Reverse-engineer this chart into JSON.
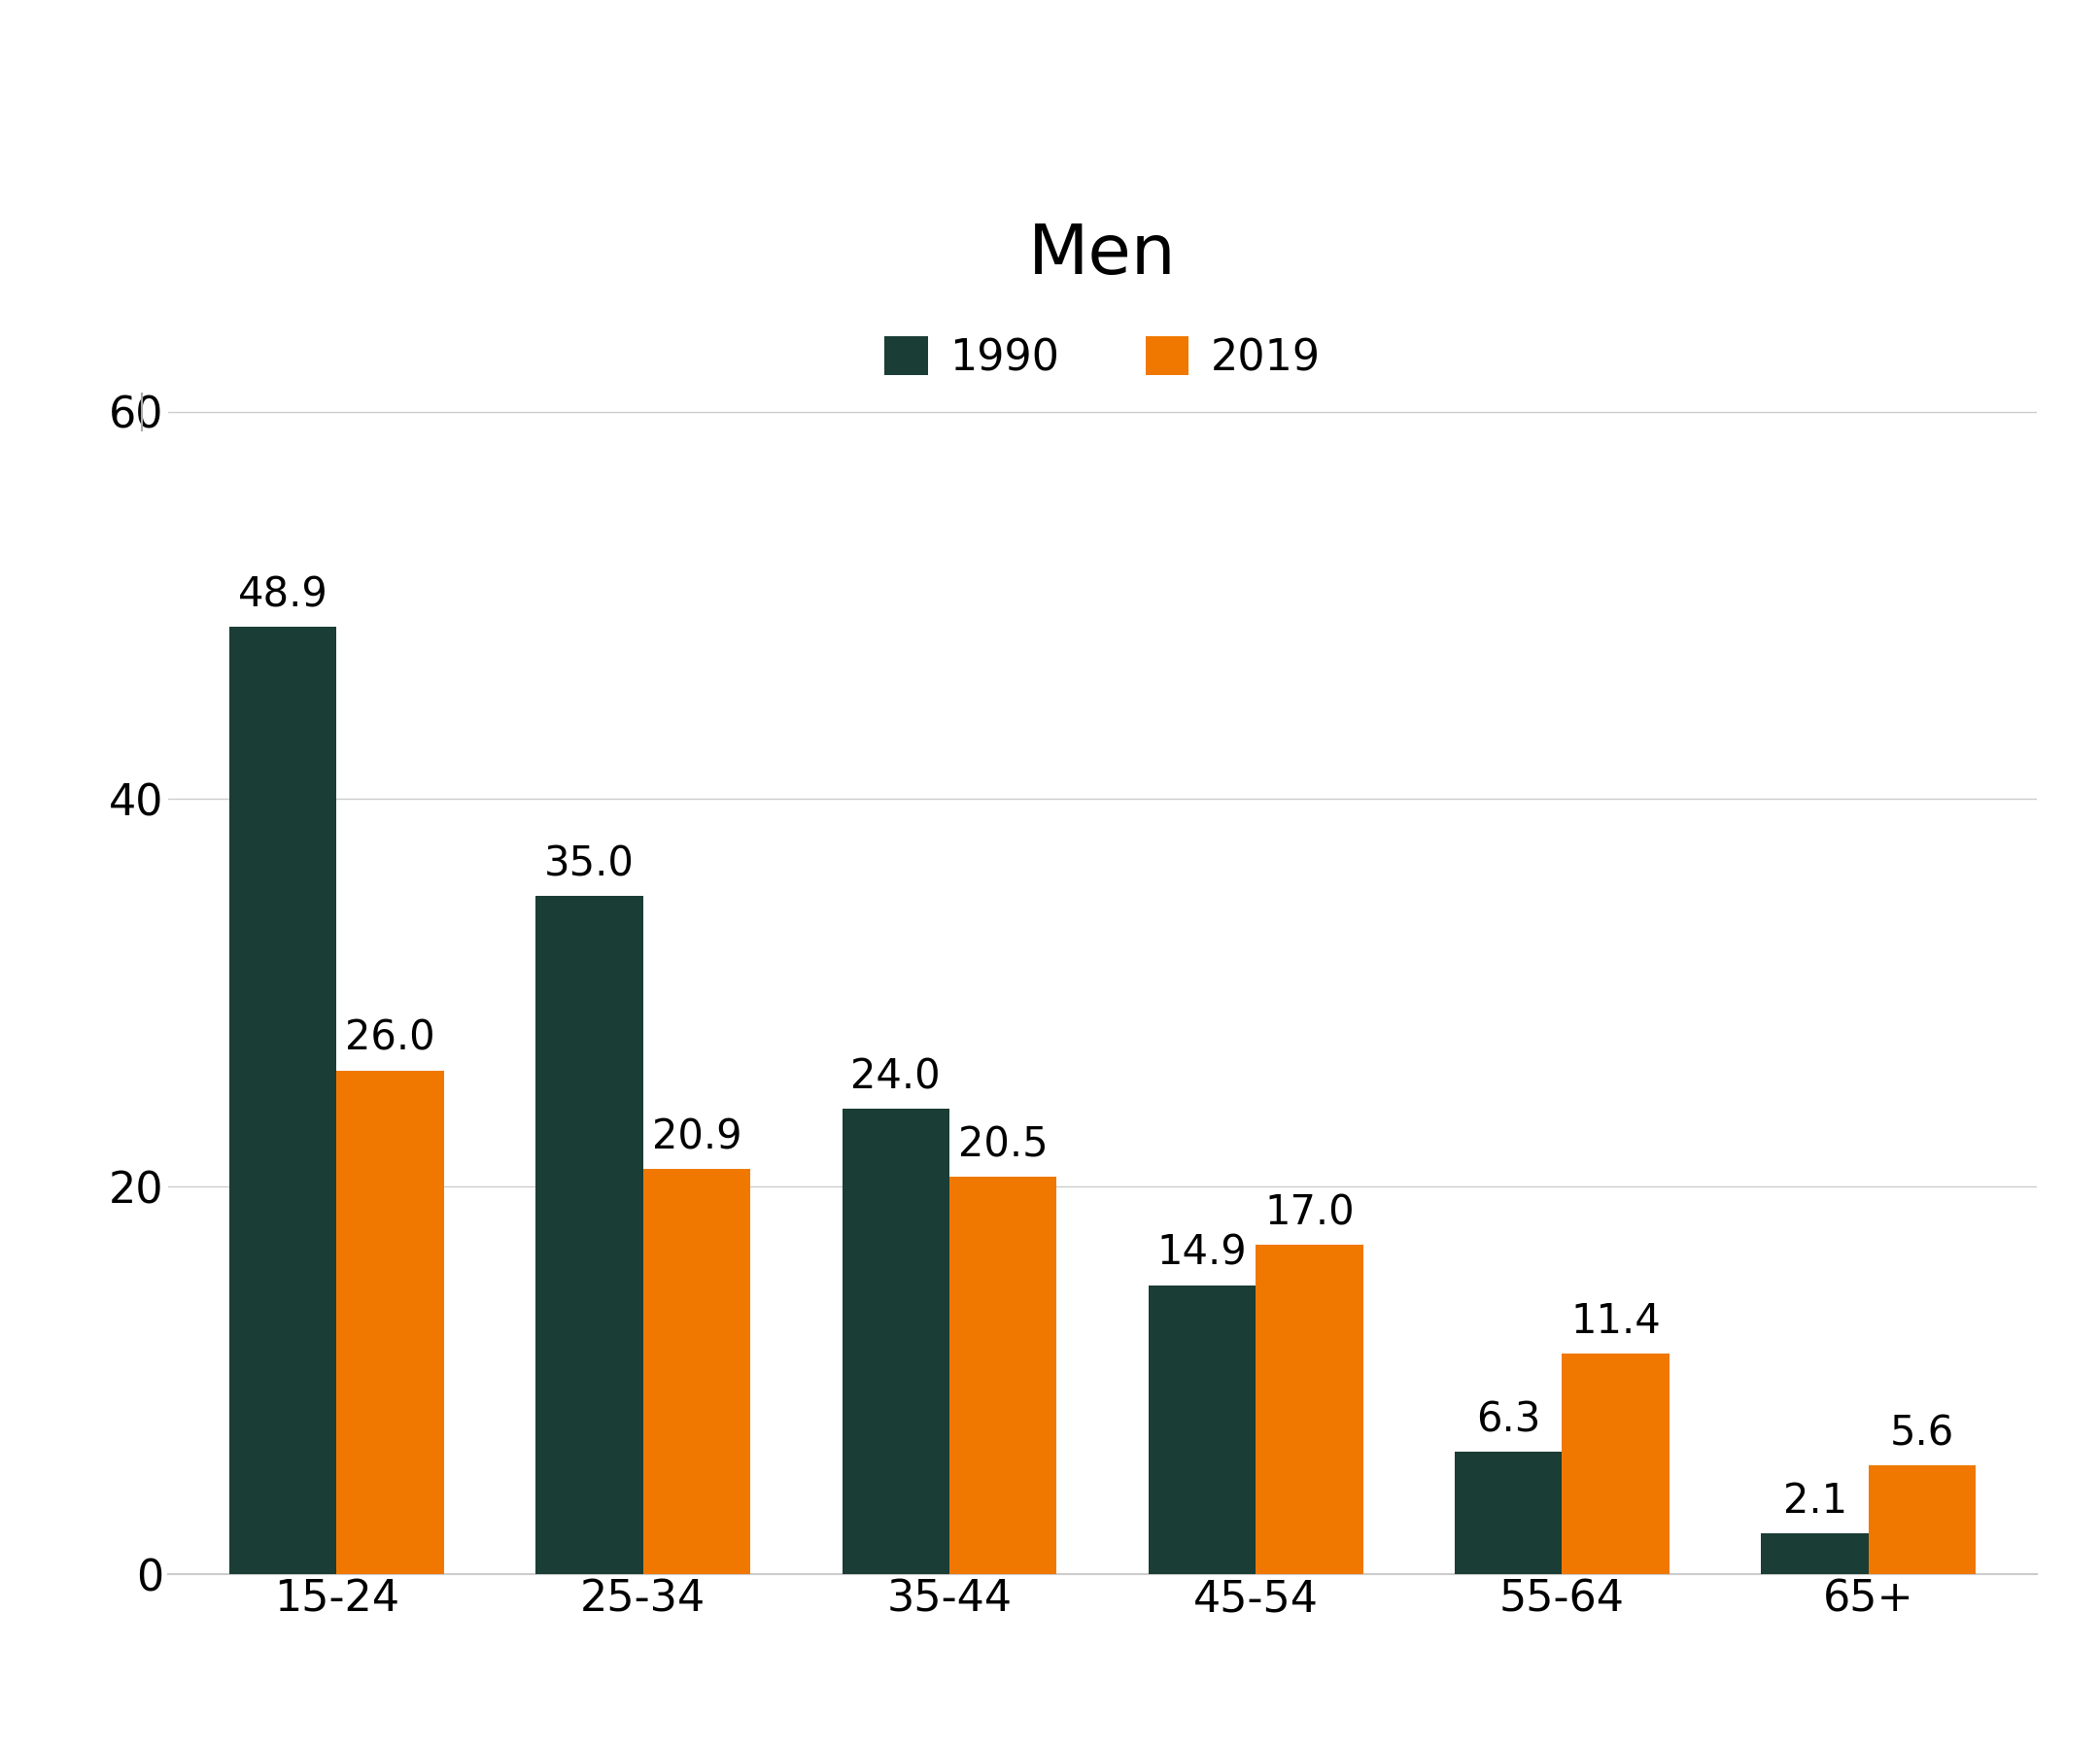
{
  "title": "Men",
  "categories": [
    "15-24",
    "25-34",
    "35-44",
    "45-54",
    "55-64",
    "65+"
  ],
  "values_1990": [
    48.9,
    35.0,
    24.0,
    14.9,
    6.3,
    2.1
  ],
  "values_2019": [
    26.0,
    20.9,
    20.5,
    17.0,
    11.4,
    5.6
  ],
  "color_1990": "#1a3d35",
  "color_2019": "#f07800",
  "legend_labels": [
    "1990",
    "2019"
  ],
  "ylim": [
    0,
    65
  ],
  "yticks": [
    0,
    20,
    40,
    60
  ],
  "title_fontsize": 52,
  "label_fontsize": 30,
  "tick_fontsize": 32,
  "legend_fontsize": 32,
  "bar_width": 0.35,
  "background_color": "#ffffff"
}
